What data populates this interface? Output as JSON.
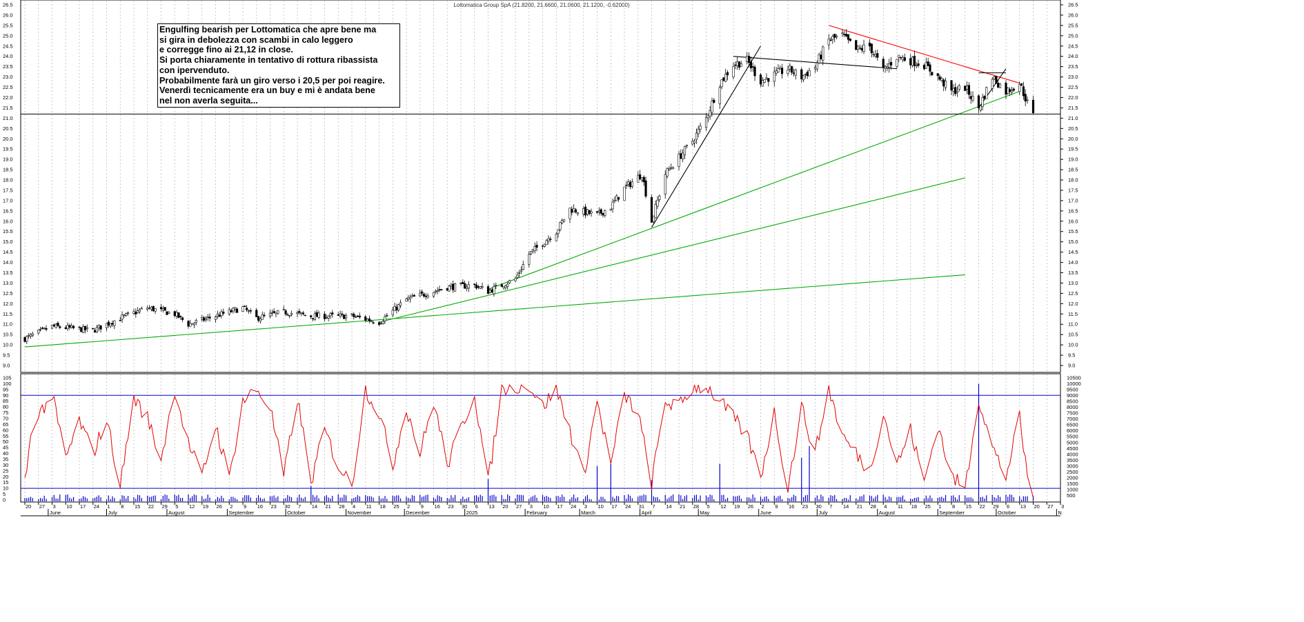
{
  "chart_title": "Lottomatica Group SpA (21.8200, 21.6600, 21.0600, 21.1200, -0.62000)",
  "annotation_lines": [
    "Engulfing bearish per Lottomatica che apre bene ma",
    "si gira in debolezza con scambi in calo leggero",
    "e corregge fino ai 21,12 in close.",
    "Si porta chiaramente in tentativo di rottura ribassista",
    "con ipervenduto.",
    "Probabilmente farà un giro verso i 20,5 per poi reagire.",
    "Venerdì tecnicamente era un buy e mi è andata bene",
    "nel non averla seguita..."
  ],
  "colors": {
    "candle": "#000000",
    "indicator": "#e00000",
    "levels": "#0000cc",
    "volume": "#0000cc",
    "trend_green": "#00aa00",
    "trend_teal": "#22aa77",
    "trend_red": "#ff0000",
    "trend_black": "#000000",
    "grid": "#b0b0b0"
  },
  "chart_data": {
    "type": "candlestick",
    "title": "Lottomatica Group SpA (21.8200, 21.6600, 21.0600, 21.1200, -0.62000)",
    "last_bar": {
      "open": 21.82,
      "high": 21.66,
      "low": 21.06,
      "close": 21.12,
      "change": -0.62
    },
    "price_axis": {
      "min": 9.0,
      "max": 26.5,
      "step": 0.5
    },
    "oscillator_axis": {
      "min": 0,
      "max": 105,
      "ticks": [
        0,
        5,
        10,
        15,
        20,
        25,
        30,
        35,
        40,
        45,
        50,
        55,
        60,
        65,
        70,
        75,
        80,
        85,
        90,
        95,
        100,
        105
      ],
      "upper_level": 90,
      "lower_level": 10
    },
    "volume_axis": {
      "min": 0,
      "max": 10500,
      "ticks": [
        500,
        1000,
        1500,
        2000,
        2500,
        3000,
        3500,
        4000,
        4500,
        5000,
        5500,
        6000,
        6500,
        7000,
        7500,
        8000,
        8500,
        9000,
        9500,
        10000,
        10500
      ]
    },
    "support_level": 21.2,
    "date_ticks": [
      "20",
      "27",
      "3",
      "10",
      "17",
      "24",
      "1",
      "8",
      "15",
      "22",
      "29",
      "5",
      "12",
      "19",
      "26",
      "2",
      "9",
      "16",
      "23",
      "30",
      "7",
      "14",
      "21",
      "28",
      "4",
      "11",
      "18",
      "25",
      "2",
      "9",
      "16",
      "23",
      "30",
      "6",
      "13",
      "20",
      "27",
      "3",
      "10",
      "17",
      "24",
      "3",
      "10",
      "17",
      "24",
      "31",
      "7",
      "14",
      "21",
      "28",
      "5",
      "12",
      "19",
      "26",
      "2",
      "9",
      "16",
      "23",
      "30",
      "7",
      "14",
      "21",
      "28",
      "4",
      "11",
      "18",
      "25",
      "1",
      "8",
      "15",
      "22",
      "29",
      "6",
      "13",
      "20",
      "27",
      "3"
    ],
    "month_labels": [
      "June",
      "July",
      "August",
      "September",
      "October",
      "November",
      "December",
      "2025",
      "February",
      "March",
      "April",
      "May",
      "June",
      "July",
      "August",
      "September",
      "October",
      "N"
    ],
    "price_path": [
      {
        "date": "2024-05-20",
        "close": 10.3
      },
      {
        "date": "2024-06-03",
        "close": 10.9
      },
      {
        "date": "2024-06-24",
        "close": 10.7
      },
      {
        "date": "2024-07-08",
        "close": 11.3
      },
      {
        "date": "2024-07-22",
        "close": 11.8
      },
      {
        "date": "2024-08-05",
        "close": 11.5
      },
      {
        "date": "2024-08-12",
        "close": 11.0
      },
      {
        "date": "2024-08-26",
        "close": 11.4
      },
      {
        "date": "2024-09-09",
        "close": 11.8
      },
      {
        "date": "2024-09-16",
        "close": 11.3
      },
      {
        "date": "2024-09-30",
        "close": 11.6
      },
      {
        "date": "2024-10-14",
        "close": 11.4
      },
      {
        "date": "2024-11-04",
        "close": 11.4
      },
      {
        "date": "2024-11-18",
        "close": 11.1
      },
      {
        "date": "2024-12-02",
        "close": 12.2
      },
      {
        "date": "2024-12-09",
        "close": 12.4
      },
      {
        "date": "2024-12-23",
        "close": 12.8
      },
      {
        "date": "2025-01-06",
        "close": 12.9
      },
      {
        "date": "2025-01-13",
        "close": 12.6
      },
      {
        "date": "2025-01-27",
        "close": 13.2
      },
      {
        "date": "2025-02-03",
        "close": 14.4
      },
      {
        "date": "2025-02-17",
        "close": 15.5
      },
      {
        "date": "2025-02-24",
        "close": 16.6
      },
      {
        "date": "2025-03-10",
        "close": 16.3
      },
      {
        "date": "2025-03-17",
        "close": 16.7
      },
      {
        "date": "2025-03-24",
        "close": 17.6
      },
      {
        "date": "2025-04-02",
        "close": 18.3
      },
      {
        "date": "2025-04-07",
        "close": 16.0
      },
      {
        "date": "2025-04-14",
        "close": 18.3
      },
      {
        "date": "2025-04-28",
        "close": 19.9
      },
      {
        "date": "2025-05-05",
        "close": 21.0
      },
      {
        "date": "2025-05-12",
        "close": 22.7
      },
      {
        "date": "2025-05-19",
        "close": 23.6
      },
      {
        "date": "2025-05-26",
        "close": 23.8
      },
      {
        "date": "2025-06-02",
        "close": 22.8
      },
      {
        "date": "2025-06-16",
        "close": 23.4
      },
      {
        "date": "2025-06-23",
        "close": 23.0
      },
      {
        "date": "2025-06-30",
        "close": 23.5
      },
      {
        "date": "2025-07-07",
        "close": 24.8
      },
      {
        "date": "2025-07-14",
        "close": 25.0
      },
      {
        "date": "2025-07-21",
        "close": 24.3
      },
      {
        "date": "2025-07-28",
        "close": 24.5
      },
      {
        "date": "2025-08-04",
        "close": 23.3
      },
      {
        "date": "2025-08-11",
        "close": 24.0
      },
      {
        "date": "2025-08-25",
        "close": 23.6
      },
      {
        "date": "2025-09-01",
        "close": 23.0
      },
      {
        "date": "2025-09-08",
        "close": 22.3
      },
      {
        "date": "2025-09-15",
        "close": 22.5
      },
      {
        "date": "2025-09-22",
        "close": 21.5
      },
      {
        "date": "2025-09-29",
        "close": 23.0
      },
      {
        "date": "2025-10-06",
        "close": 22.3
      },
      {
        "date": "2025-10-13",
        "close": 22.7
      },
      {
        "date": "2025-10-17",
        "close": 21.74
      },
      {
        "date": "2025-10-20",
        "close": 21.12
      }
    ],
    "oscillator_path": [
      {
        "date": "2024-05-20",
        "value": 15
      },
      {
        "date": "2024-05-24",
        "value": 66
      },
      {
        "date": "2024-06-03",
        "value": 90
      },
      {
        "date": "2024-06-10",
        "value": 35
      },
      {
        "date": "2024-06-17",
        "value": 68
      },
      {
        "date": "2024-06-24",
        "value": 40
      },
      {
        "date": "2024-07-01",
        "value": 70
      },
      {
        "date": "2024-07-08",
        "value": 12
      },
      {
        "date": "2024-07-15",
        "value": 88
      },
      {
        "date": "2024-07-22",
        "value": 70
      },
      {
        "date": "2024-07-29",
        "value": 35
      },
      {
        "date": "2024-08-05",
        "value": 96
      },
      {
        "date": "2024-08-12",
        "value": 48
      },
      {
        "date": "2024-08-19",
        "value": 20
      },
      {
        "date": "2024-08-26",
        "value": 65
      },
      {
        "date": "2024-09-02",
        "value": 18
      },
      {
        "date": "2024-09-09",
        "value": 85
      },
      {
        "date": "2024-09-16",
        "value": 95
      },
      {
        "date": "2024-09-23",
        "value": 80
      },
      {
        "date": "2024-09-30",
        "value": 20
      },
      {
        "date": "2024-10-07",
        "value": 88
      },
      {
        "date": "2024-10-14",
        "value": 15
      },
      {
        "date": "2024-10-21",
        "value": 60
      },
      {
        "date": "2024-10-28",
        "value": 30
      },
      {
        "date": "2024-11-04",
        "value": 12
      },
      {
        "date": "2024-11-11",
        "value": 95
      },
      {
        "date": "2024-11-18",
        "value": 75
      },
      {
        "date": "2024-11-25",
        "value": 30
      },
      {
        "date": "2024-12-02",
        "value": 80
      },
      {
        "date": "2024-12-09",
        "value": 40
      },
      {
        "date": "2024-12-16",
        "value": 85
      },
      {
        "date": "2024-12-23",
        "value": 30
      },
      {
        "date": "2025-01-06",
        "value": 92
      },
      {
        "date": "2025-01-13",
        "value": 15
      },
      {
        "date": "2025-01-20",
        "value": 95
      },
      {
        "date": "2025-01-27",
        "value": 98
      },
      {
        "date": "2025-02-03",
        "value": 99
      },
      {
        "date": "2025-02-10",
        "value": 80
      },
      {
        "date": "2025-02-17",
        "value": 96
      },
      {
        "date": "2025-02-24",
        "value": 60
      },
      {
        "date": "2025-03-03",
        "value": 20
      },
      {
        "date": "2025-03-10",
        "value": 85
      },
      {
        "date": "2025-03-17",
        "value": 30
      },
      {
        "date": "2025-03-24",
        "value": 90
      },
      {
        "date": "2025-03-31",
        "value": 75
      },
      {
        "date": "2025-04-07",
        "value": 15
      },
      {
        "date": "2025-04-14",
        "value": 85
      },
      {
        "date": "2025-04-21",
        "value": 80
      },
      {
        "date": "2025-04-28",
        "value": 97
      },
      {
        "date": "2025-05-05",
        "value": 98
      },
      {
        "date": "2025-05-12",
        "value": 85
      },
      {
        "date": "2025-05-19",
        "value": 70
      },
      {
        "date": "2025-05-26",
        "value": 55
      },
      {
        "date": "2025-06-02",
        "value": 20
      },
      {
        "date": "2025-06-09",
        "value": 75
      },
      {
        "date": "2025-06-16",
        "value": 10
      },
      {
        "date": "2025-06-23",
        "value": 80
      },
      {
        "date": "2025-06-30",
        "value": 40
      },
      {
        "date": "2025-07-07",
        "value": 96
      },
      {
        "date": "2025-07-14",
        "value": 55
      },
      {
        "date": "2025-07-21",
        "value": 40
      },
      {
        "date": "2025-07-28",
        "value": 25
      },
      {
        "date": "2025-08-04",
        "value": 75
      },
      {
        "date": "2025-08-11",
        "value": 30
      },
      {
        "date": "2025-08-18",
        "value": 60
      },
      {
        "date": "2025-08-25",
        "value": 15
      },
      {
        "date": "2025-09-01",
        "value": 65
      },
      {
        "date": "2025-09-08",
        "value": 20
      },
      {
        "date": "2025-09-15",
        "value": 10
      },
      {
        "date": "2025-09-22",
        "value": 88
      },
      {
        "date": "2025-09-29",
        "value": 45
      },
      {
        "date": "2025-10-06",
        "value": 20
      },
      {
        "date": "2025-10-13",
        "value": 70
      },
      {
        "date": "2025-10-17",
        "value": 20
      },
      {
        "date": "2025-10-20",
        "value": 5
      }
    ],
    "volume_peaks": [
      {
        "date": "2024-10-14",
        "volume": 1300
      },
      {
        "date": "2025-01-13",
        "volume": 1900
      },
      {
        "date": "2025-03-10",
        "volume": 3000
      },
      {
        "date": "2025-03-17",
        "volume": 3200
      },
      {
        "date": "2025-04-07",
        "volume": 1800
      },
      {
        "date": "2025-05-12",
        "volume": 3200
      },
      {
        "date": "2025-06-23",
        "volume": 3700
      },
      {
        "date": "2025-06-27",
        "volume": 4700
      },
      {
        "date": "2025-09-22",
        "volume": 10000
      }
    ],
    "trendlines": [
      {
        "name": "long-term support",
        "color": "green",
        "from": {
          "date": "2024-05-20",
          "price": 9.9
        },
        "to": {
          "date": "2025-09-15",
          "price": 13.4
        }
      },
      {
        "name": "medium support",
        "color": "green",
        "from": {
          "date": "2024-11-18",
          "price": 11.1
        },
        "to": {
          "date": "2025-09-15",
          "price": 18.1
        }
      },
      {
        "name": "steep support",
        "color": "green",
        "from": {
          "date": "2025-01-13",
          "price": 12.7
        },
        "to": {
          "date": "2025-10-13",
          "price": 22.3
        }
      },
      {
        "name": "rally line",
        "color": "black",
        "from": {
          "date": "2025-04-07",
          "price": 15.7
        },
        "to": {
          "date": "2025-06-02",
          "price": 24.5
        }
      },
      {
        "name": "neckline",
        "color": "black",
        "from": {
          "date": "2025-05-19",
          "price": 24.0
        },
        "to": {
          "date": "2025-08-11",
          "price": 23.4
        }
      },
      {
        "name": "downtrend",
        "color": "red",
        "from": {
          "date": "2025-07-07",
          "price": 25.5
        },
        "to": {
          "date": "2025-10-13",
          "price": 22.7
        }
      },
      {
        "name": "flag top",
        "color": "black",
        "from": {
          "date": "2025-09-22",
          "price": 23.2
        },
        "to": {
          "date": "2025-10-06",
          "price": 23.2
        }
      },
      {
        "name": "flag up",
        "color": "black",
        "from": {
          "date": "2025-09-22",
          "price": 21.5
        },
        "to": {
          "date": "2025-10-06",
          "price": 23.4
        }
      }
    ]
  }
}
